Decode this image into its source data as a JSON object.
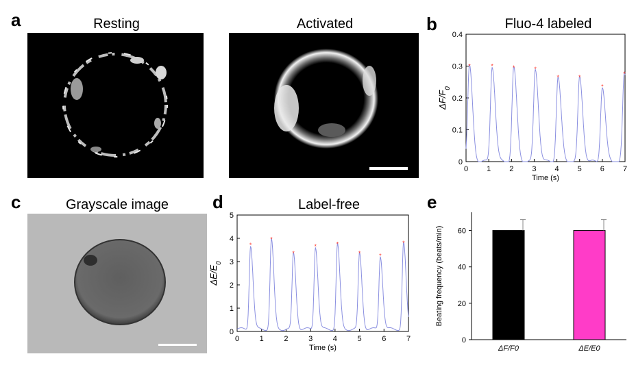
{
  "panels": {
    "a": {
      "label": "a",
      "resting_title": "Resting",
      "activated_title": "Activated"
    },
    "b": {
      "label": "b",
      "title": "Fluo-4 labeled"
    },
    "c": {
      "label": "c",
      "title": "Grayscale image"
    },
    "d": {
      "label": "d",
      "title": "Label-free"
    },
    "e": {
      "label": "e"
    }
  },
  "colors": {
    "trace": "#8a8fe0",
    "peak": "#ff3b30",
    "bar1": "#000000",
    "bar2": "#ff3cc8"
  },
  "chart_data": [
    {
      "id": "b",
      "type": "line",
      "xlabel": "Time (s)",
      "ylabel": "ΔF/F0",
      "xlim": [
        0,
        7
      ],
      "ylim": [
        0,
        0.4
      ],
      "xticks": [
        0,
        1,
        2,
        3,
        4,
        5,
        6,
        7
      ],
      "yticks": [
        0,
        0.1,
        0.2,
        0.3,
        0.4
      ],
      "peaks": {
        "x": [
          0.15,
          1.15,
          2.1,
          3.05,
          4.05,
          5.0,
          6.0,
          6.97
        ],
        "y": [
          0.3,
          0.3,
          0.295,
          0.29,
          0.265,
          0.265,
          0.235,
          0.275
        ]
      },
      "baseline": 0.0,
      "peak_width": 0.3
    },
    {
      "id": "d",
      "type": "line",
      "xlabel": "Time (s)",
      "ylabel": "ΔE/E0",
      "xlim": [
        0,
        7
      ],
      "ylim": [
        0,
        5
      ],
      "xticks": [
        0,
        1,
        2,
        3,
        4,
        5,
        6,
        7
      ],
      "yticks": [
        0,
        1,
        2,
        3,
        4,
        5
      ],
      "peaks": {
        "x": [
          0.55,
          1.4,
          2.3,
          3.2,
          4.1,
          5.0,
          5.85,
          6.8
        ],
        "y": [
          3.7,
          3.95,
          3.35,
          3.65,
          3.75,
          3.35,
          3.25,
          3.8
        ]
      },
      "baseline": 0.1,
      "peak_width": 0.22
    },
    {
      "id": "e",
      "type": "bar",
      "categories": [
        "ΔF/F0",
        "ΔE/E0"
      ],
      "values": [
        60,
        60
      ],
      "errors": [
        6,
        6
      ],
      "ylabel": "Beating frequency (beats/min)",
      "ylim": [
        0,
        70
      ],
      "yticks": [
        0,
        20,
        40,
        60
      ]
    }
  ]
}
